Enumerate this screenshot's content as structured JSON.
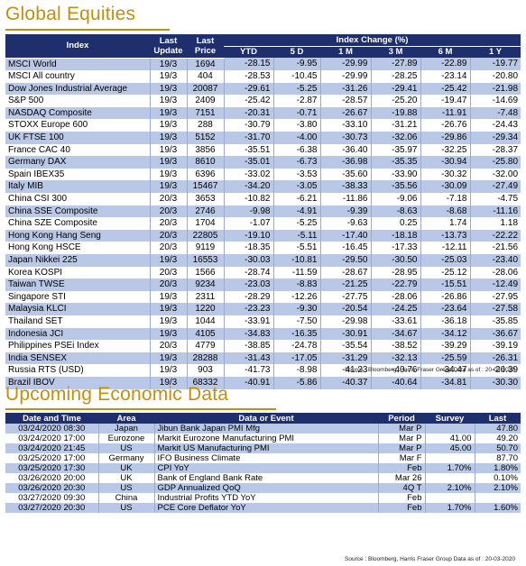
{
  "equities": {
    "title": "Global Equities",
    "headers": {
      "index": "Index",
      "last_update": [
        "Last",
        "Update"
      ],
      "last_price": [
        "Last",
        "Price"
      ],
      "change_group": "Index Change (%)",
      "periods": [
        "YTD",
        "5 D",
        "1 M",
        "3 M",
        "6 M",
        "1 Y"
      ]
    },
    "rows": [
      {
        "name": "MSCI World",
        "update": "19/3",
        "price": "1694",
        "changes": [
          "-28.15",
          "-9.95",
          "-29.99",
          "-27.89",
          "-22.89",
          "-19.77"
        ]
      },
      {
        "name": "MSCI All country",
        "update": "19/3",
        "price": "404",
        "changes": [
          "-28.53",
          "-10.45",
          "-29.99",
          "-28.25",
          "-23.14",
          "-20.80"
        ]
      },
      {
        "name": "Dow Jones Industrial Average",
        "update": "19/3",
        "price": "20087",
        "changes": [
          "-29.61",
          "-5.25",
          "-31.26",
          "-29.41",
          "-25.42",
          "-21.98"
        ]
      },
      {
        "name": "S&P 500",
        "update": "19/3",
        "price": "2409",
        "changes": [
          "-25.42",
          "-2.87",
          "-28.57",
          "-25.20",
          "-19.47",
          "-14.69"
        ]
      },
      {
        "name": "NASDAQ Composite",
        "update": "19/3",
        "price": "7151",
        "changes": [
          "-20.31",
          "-0.71",
          "-26.67",
          "-19.88",
          "-11.91",
          "-7.48"
        ]
      },
      {
        "name": "STOXX Europe 600",
        "update": "19/3",
        "price": "288",
        "changes": [
          "-30.79",
          "-3.80",
          "-33.10",
          "-31.21",
          "-26.76",
          "-24.43"
        ]
      },
      {
        "name": "UK FTSE 100",
        "update": "19/3",
        "price": "5152",
        "changes": [
          "-31.70",
          "-4.00",
          "-30.73",
          "-32.06",
          "-29.86",
          "-29.34"
        ]
      },
      {
        "name": "France CAC 40",
        "update": "19/3",
        "price": "3856",
        "changes": [
          "-35.51",
          "-6.38",
          "-36.40",
          "-35.97",
          "-32.25",
          "-28.37"
        ]
      },
      {
        "name": "Germany DAX",
        "update": "19/3",
        "price": "8610",
        "changes": [
          "-35.01",
          "-6.73",
          "-36.98",
          "-35.35",
          "-30.94",
          "-25.80"
        ]
      },
      {
        "name": "Spain IBEX35",
        "update": "19/3",
        "price": "6396",
        "changes": [
          "-33.02",
          "-3.53",
          "-35.60",
          "-33.90",
          "-30.32",
          "-32.00"
        ]
      },
      {
        "name": "Italy MIB",
        "update": "19/3",
        "price": "15467",
        "changes": [
          "-34.20",
          "-3.05",
          "-38.33",
          "-35.56",
          "-30.09",
          "-27.49"
        ]
      },
      {
        "name": "China CSI 300",
        "update": "20/3",
        "price": "3653",
        "changes": [
          "-10.82",
          "-6.21",
          "-11.86",
          "-9.06",
          "-7.18",
          "-4.75"
        ]
      },
      {
        "name": "China SSE Composite",
        "update": "20/3",
        "price": "2746",
        "changes": [
          "-9.98",
          "-4.91",
          "-9.39",
          "-8.63",
          "-8.68",
          "-11.16"
        ]
      },
      {
        "name": "China SZE Composite",
        "update": "20/3",
        "price": "1704",
        "changes": [
          "-1.07",
          "-5.25",
          "-9.63",
          "0.25",
          "1.74",
          "1.18"
        ]
      },
      {
        "name": "Hong Kong Hang Seng",
        "update": "20/3",
        "price": "22805",
        "changes": [
          "-19.10",
          "-5.11",
          "-17.40",
          "-18.18",
          "-13.73",
          "-22.22"
        ]
      },
      {
        "name": "Hong Kong HSCE",
        "update": "20/3",
        "price": "9119",
        "changes": [
          "-18.35",
          "-5.51",
          "-16.45",
          "-17.33",
          "-12.11",
          "-21.56"
        ]
      },
      {
        "name": "Japan Nikkei 225",
        "update": "19/3",
        "price": "16553",
        "changes": [
          "-30.03",
          "-10.81",
          "-29.50",
          "-30.50",
          "-25.03",
          "-23.40"
        ]
      },
      {
        "name": "Korea KOSPI",
        "update": "20/3",
        "price": "1566",
        "changes": [
          "-28.74",
          "-11.59",
          "-28.67",
          "-28.95",
          "-25.12",
          "-28.06"
        ]
      },
      {
        "name": "Taiwan TWSE",
        "update": "20/3",
        "price": "9234",
        "changes": [
          "-23.03",
          "-8.83",
          "-21.25",
          "-22.79",
          "-15.51",
          "-12.49"
        ]
      },
      {
        "name": "Singapore STI",
        "update": "19/3",
        "price": "2311",
        "changes": [
          "-28.29",
          "-12.26",
          "-27.75",
          "-28.06",
          "-26.86",
          "-27.95"
        ]
      },
      {
        "name": "Malaysia KLCI",
        "update": "19/3",
        "price": "1220",
        "changes": [
          "-23.23",
          "-9.30",
          "-20.54",
          "-24.25",
          "-23.64",
          "-27.58"
        ]
      },
      {
        "name": "Thailand SET",
        "update": "19/3",
        "price": "1044",
        "changes": [
          "-33.91",
          "-7.50",
          "-29.98",
          "-33.61",
          "-36.18",
          "-35.85"
        ]
      },
      {
        "name": "Indonesia JCI",
        "update": "19/3",
        "price": "4105",
        "changes": [
          "-34.83",
          "-16.35",
          "-30.91",
          "-34.67",
          "-34.12",
          "-36.67"
        ]
      },
      {
        "name": "Philippines PSEi Index",
        "update": "20/3",
        "price": "4779",
        "changes": [
          "-38.85",
          "-24.78",
          "-35.54",
          "-38.52",
          "-39.29",
          "-39.19"
        ]
      },
      {
        "name": "India SENSEX",
        "update": "19/3",
        "price": "28288",
        "changes": [
          "-31.43",
          "-17.05",
          "-31.29",
          "-32.13",
          "-25.59",
          "-26.31"
        ]
      },
      {
        "name": "Russia RTS (USD)",
        "update": "19/3",
        "price": "903",
        "changes": [
          "-41.73",
          "-8.98",
          "-41.23",
          "-40.76",
          "-34.47",
          "-26.39"
        ]
      },
      {
        "name": "Brazil IBOV",
        "update": "19/3",
        "price": "68332",
        "changes": [
          "-40.91",
          "-5.86",
          "-40.37",
          "-40.64",
          "-34.81",
          "-30.30"
        ]
      }
    ],
    "source": "Source : Bloomberg, Harris Fraser Group Data as of : 20-03-2020"
  },
  "economic": {
    "title": "Upcoming Economic Data",
    "headers": [
      "Date and Time",
      "Area",
      "Data or Event",
      "Period",
      "Survey",
      "Last"
    ],
    "rows": [
      {
        "datetime": "03/24/2020 08:30",
        "area": "Japan",
        "event": "Jibun Bank Japan PMI Mfg",
        "period": "Mar P",
        "survey": "",
        "last": "47.80"
      },
      {
        "datetime": "03/24/2020 17:00",
        "area": "Eurozone",
        "event": "Markit Eurozone Manufacturing PMI",
        "period": "Mar P",
        "survey": "41.00",
        "last": "49.20"
      },
      {
        "datetime": "03/24/2020 21:45",
        "area": "US",
        "event": "Markit US Manufacturing PMI",
        "period": "Mar P",
        "survey": "45.00",
        "last": "50.70"
      },
      {
        "datetime": "03/25/2020 17:00",
        "area": "Germany",
        "event": "IFO Business Climate",
        "period": "Mar F",
        "survey": "",
        "last": "87.70"
      },
      {
        "datetime": "03/25/2020 17:30",
        "area": "UK",
        "event": "CPI YoY",
        "period": "Feb",
        "survey": "1.70%",
        "last": "1.80%"
      },
      {
        "datetime": "03/26/2020 20:00",
        "area": "UK",
        "event": "Bank of England Bank Rate",
        "period": "Mar 26",
        "survey": "",
        "last": "0.10%"
      },
      {
        "datetime": "03/26/2020 20:30",
        "area": "US",
        "event": "GDP Annualized QoQ",
        "period": "4Q T",
        "survey": "2.10%",
        "last": "2.10%"
      },
      {
        "datetime": "03/27/2020 09:30",
        "area": "China",
        "event": "Industrial Profits YTD YoY",
        "period": "Feb",
        "survey": "",
        "last": ""
      },
      {
        "datetime": "03/27/2020 20:30",
        "area": "US",
        "event": "PCE Core Deflator YoY",
        "period": "Feb",
        "survey": "1.70%",
        "last": "1.60%"
      }
    ],
    "source": "Source : Bloomberg, Harris Fraser Group Data as of : 20-03-2020"
  }
}
